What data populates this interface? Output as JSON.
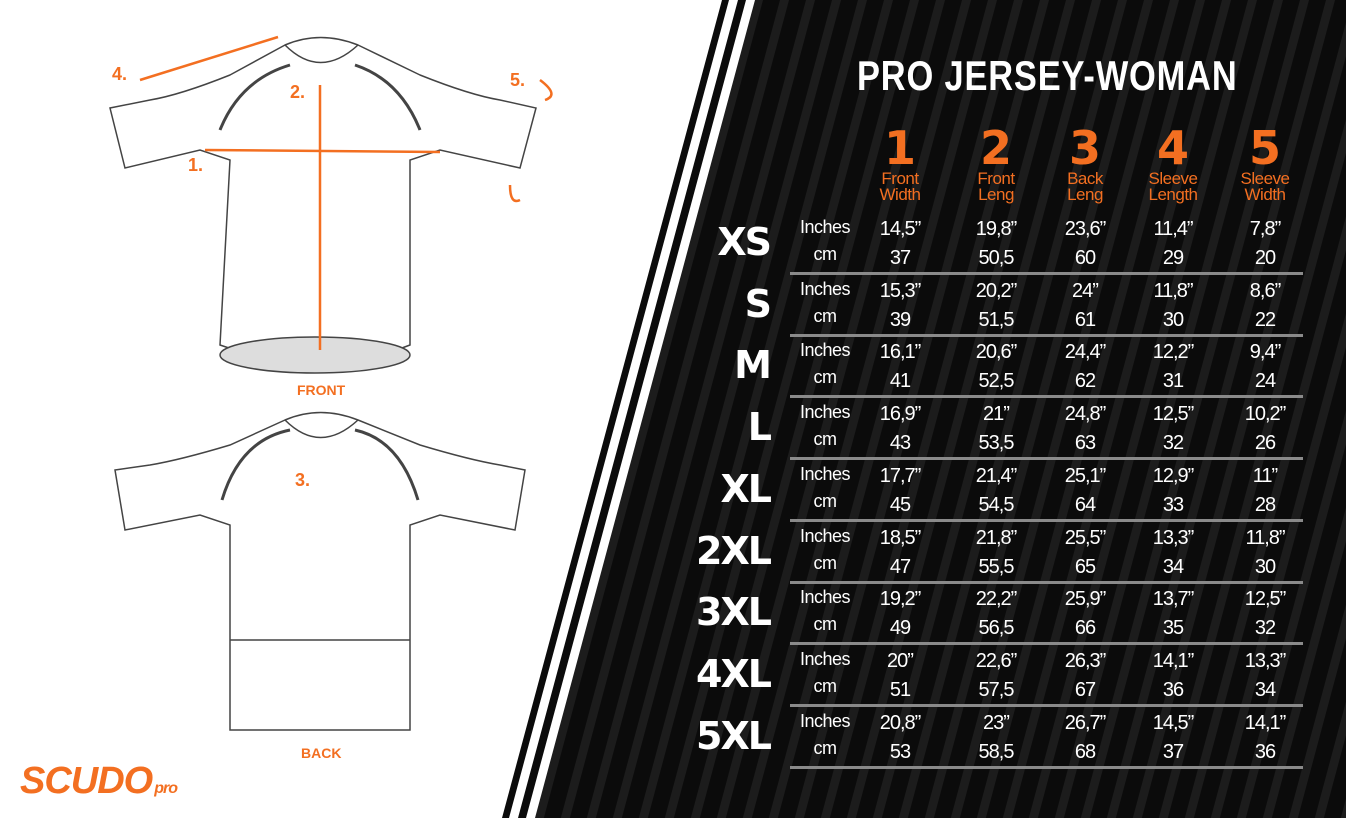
{
  "title": "PRO JERSEY-WOMAN",
  "brand": {
    "name": "SCUDO",
    "suffix": "pro"
  },
  "accent": "#f36f21",
  "diagram": {
    "front_label": "FRONT",
    "back_label": "BACK",
    "markers": [
      "1.",
      "2.",
      "3.",
      "4.",
      "5."
    ]
  },
  "columns": [
    {
      "num": "1",
      "line1": "Front",
      "line2": "Width"
    },
    {
      "num": "2",
      "line1": "Front",
      "line2": "Leng"
    },
    {
      "num": "3",
      "line1": "Back",
      "line2": "Leng"
    },
    {
      "num": "4",
      "line1": "Sleeve",
      "line2": "Length"
    },
    {
      "num": "5",
      "line1": "Sleeve",
      "line2": "Width"
    }
  ],
  "unit_labels": {
    "inches": "Inches",
    "cm": "cm"
  },
  "rows": [
    {
      "size": "XS",
      "inches": [
        "14,5”",
        "19,8”",
        "23,6”",
        "11,4”",
        "7,8”"
      ],
      "cm": [
        "37",
        "50,5",
        "60",
        "29",
        "20"
      ]
    },
    {
      "size": "S",
      "inches": [
        "15,3”",
        "20,2”",
        "24”",
        "11,8”",
        "8,6”"
      ],
      "cm": [
        "39",
        "51,5",
        "61",
        "30",
        "22"
      ]
    },
    {
      "size": "M",
      "inches": [
        "16,1”",
        "20,6”",
        "24,4”",
        "12,2”",
        "9,4”"
      ],
      "cm": [
        "41",
        "52,5",
        "62",
        "31",
        "24"
      ]
    },
    {
      "size": "L",
      "inches": [
        "16,9”",
        "21”",
        "24,8”",
        "12,5”",
        "10,2”"
      ],
      "cm": [
        "43",
        "53,5",
        "63",
        "32",
        "26"
      ]
    },
    {
      "size": "XL",
      "inches": [
        "17,7”",
        "21,4”",
        "25,1”",
        "12,9”",
        "11”"
      ],
      "cm": [
        "45",
        "54,5",
        "64",
        "33",
        "28"
      ]
    },
    {
      "size": "2XL",
      "inches": [
        "18,5”",
        "21,8”",
        "25,5”",
        "13,3”",
        "11,8”"
      ],
      "cm": [
        "47",
        "55,5",
        "65",
        "34",
        "30"
      ]
    },
    {
      "size": "3XL",
      "inches": [
        "19,2”",
        "22,2”",
        "25,9”",
        "13,7”",
        "12,5”"
      ],
      "cm": [
        "49",
        "56,5",
        "66",
        "35",
        "32"
      ]
    },
    {
      "size": "4XL",
      "inches": [
        "20”",
        "22,6”",
        "26,3”",
        "14,1”",
        "13,3”"
      ],
      "cm": [
        "51",
        "57,5",
        "67",
        "36",
        "34"
      ]
    },
    {
      "size": "5XL",
      "inches": [
        "20,8”",
        "23”",
        "26,7”",
        "14,5”",
        "14,1”"
      ],
      "cm": [
        "53",
        "58,5",
        "68",
        "37",
        "36"
      ]
    }
  ]
}
